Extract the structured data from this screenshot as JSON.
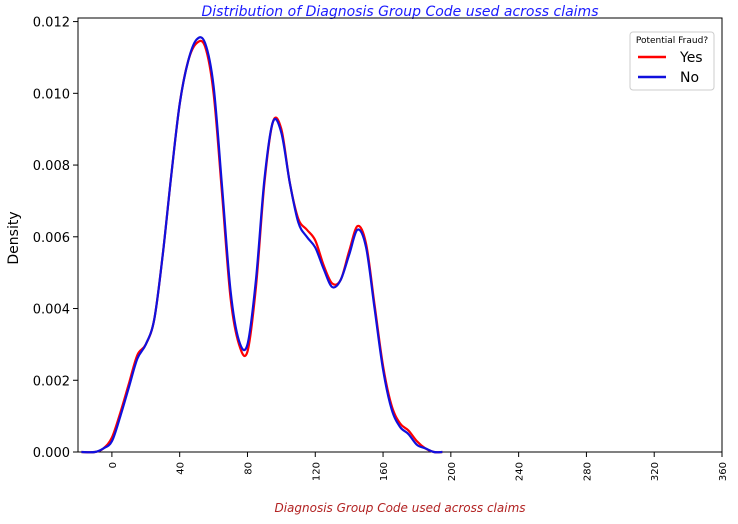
{
  "chart_data": {
    "type": "line",
    "title": "Distribution of Diagnosis Group Code used across claims",
    "xlabel": "Diagnosis Group Code used across claims",
    "ylabel": "Density",
    "xlim": [
      -20,
      360
    ],
    "ylim": [
      0,
      0.0121
    ],
    "xticks": [
      "0",
      "40",
      "80",
      "120",
      "160",
      "200",
      "240",
      "280",
      "320",
      "360"
    ],
    "xtick_values": [
      0,
      40,
      80,
      120,
      160,
      200,
      240,
      280,
      320,
      360
    ],
    "yticks": [
      "0.000",
      "0.002",
      "0.004",
      "0.006",
      "0.008",
      "0.010",
      "0.012"
    ],
    "ytick_values": [
      0,
      0.002,
      0.004,
      0.006,
      0.008,
      0.01,
      0.012
    ],
    "grid": false,
    "legend": {
      "title": "Potential Fraud?",
      "placement": "top-right"
    },
    "series": [
      {
        "name": "Yes",
        "color": "#ff0000",
        "x": [
          -18,
          -10,
          -5,
          0,
          5,
          10,
          15,
          20,
          25,
          30,
          35,
          40,
          45,
          50,
          55,
          60,
          65,
          70,
          75,
          80,
          85,
          90,
          95,
          100,
          105,
          110,
          115,
          120,
          125,
          130,
          135,
          140,
          145,
          150,
          155,
          160,
          165,
          170,
          175,
          180,
          185,
          190,
          195
        ],
        "y": [
          0.0,
          0.0,
          0.0001,
          0.0004,
          0.0011,
          0.0019,
          0.0027,
          0.003,
          0.0037,
          0.0055,
          0.0077,
          0.0097,
          0.0109,
          0.0114,
          0.0113,
          0.01,
          0.0072,
          0.0043,
          0.003,
          0.0028,
          0.0046,
          0.0075,
          0.0092,
          0.009,
          0.0075,
          0.0065,
          0.0062,
          0.0059,
          0.0052,
          0.0047,
          0.0048,
          0.0056,
          0.0063,
          0.0058,
          0.0041,
          0.0024,
          0.0013,
          0.0008,
          0.0006,
          0.0003,
          0.0001,
          0.0,
          0.0
        ]
      },
      {
        "name": "No",
        "color": "#1010dd",
        "x": [
          -18,
          -10,
          -5,
          0,
          5,
          10,
          15,
          20,
          25,
          30,
          35,
          40,
          45,
          50,
          55,
          60,
          65,
          70,
          75,
          80,
          85,
          90,
          95,
          100,
          105,
          110,
          115,
          120,
          125,
          130,
          135,
          140,
          145,
          150,
          155,
          160,
          165,
          170,
          175,
          180,
          185,
          190,
          195
        ],
        "y": [
          0.0,
          0.0,
          0.0001,
          0.0003,
          0.001,
          0.0018,
          0.0026,
          0.003,
          0.0037,
          0.0055,
          0.0077,
          0.0097,
          0.0109,
          0.0115,
          0.0114,
          0.0102,
          0.0074,
          0.0045,
          0.0031,
          0.003,
          0.0048,
          0.0076,
          0.0092,
          0.0089,
          0.0075,
          0.0064,
          0.006,
          0.0057,
          0.0051,
          0.0046,
          0.0048,
          0.0055,
          0.0062,
          0.0057,
          0.004,
          0.0023,
          0.0012,
          0.0007,
          0.0005,
          0.0002,
          0.0001,
          0.0,
          0.0
        ]
      }
    ]
  }
}
